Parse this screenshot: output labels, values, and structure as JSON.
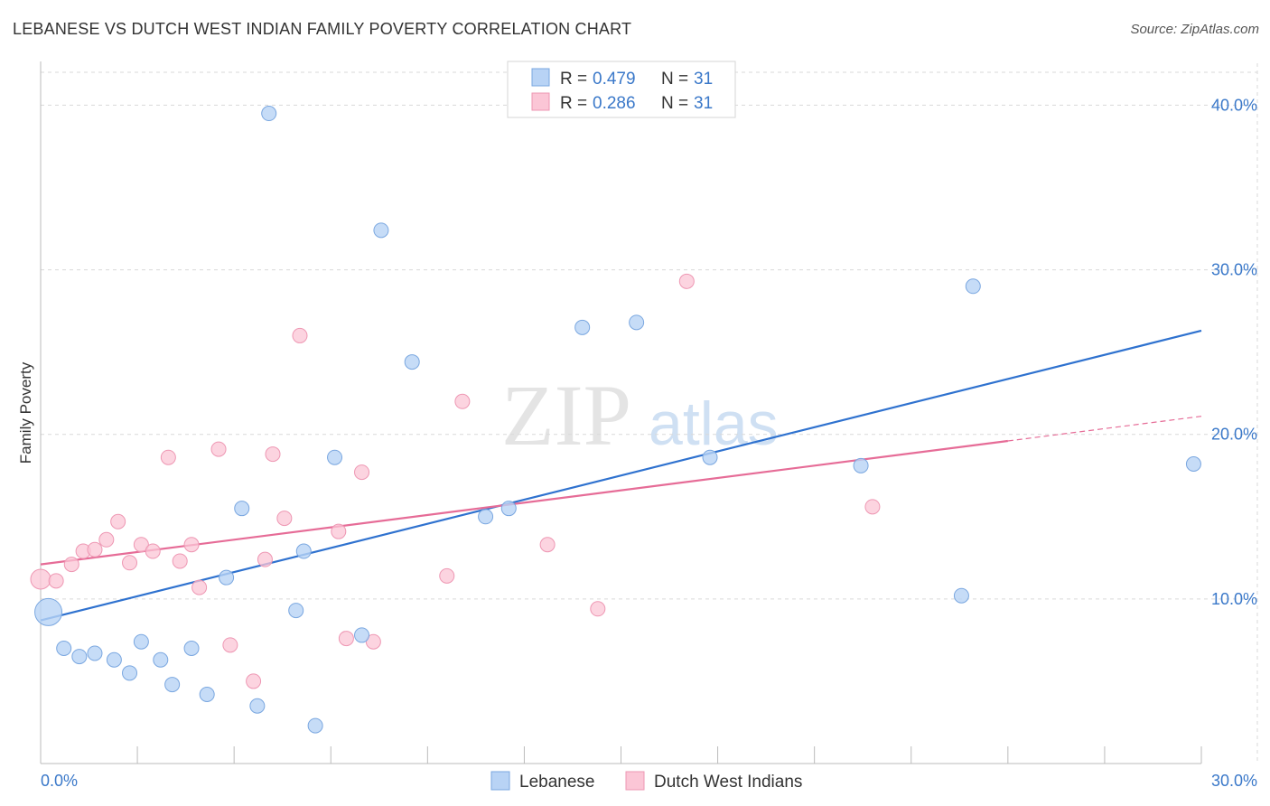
{
  "title": "LEBANESE VS DUTCH WEST INDIAN FAMILY POVERTY CORRELATION CHART",
  "source": "Source: ZipAtlas.com",
  "watermark": {
    "zip": "ZIP",
    "atlas": "atlas"
  },
  "colors": {
    "lebanese_fill": "#b8d3f5",
    "lebanese_stroke": "#7aa7e0",
    "lebanese_line": "#2f72cf",
    "dutch_fill": "#fbc6d6",
    "dutch_stroke": "#ee97b3",
    "dutch_line": "#e66c97",
    "grid": "#d9d9d9",
    "tick_text": "#3a78c9"
  },
  "legend": {
    "rows": [
      {
        "r_label": "R =",
        "r_value": "0.479",
        "n_label": "N =",
        "n_value": "31"
      },
      {
        "r_label": "R =",
        "r_value": "0.286",
        "n_label": "N =",
        "n_value": "31"
      }
    ]
  },
  "chart_data": {
    "type": "scatter",
    "title": "LEBANESE VS DUTCH WEST INDIAN FAMILY POVERTY CORRELATION CHART",
    "xlabel": "",
    "ylabel": "Family Poverty",
    "xlim": [
      0,
      30
    ],
    "ylim": [
      0,
      42
    ],
    "x_tick_labels": [
      {
        "value": 0,
        "label": "0.0%"
      },
      {
        "value": 30,
        "label": "30.0%"
      }
    ],
    "y_ticks": [
      {
        "value": 10,
        "label": "10.0%"
      },
      {
        "value": 20,
        "label": "20.0%"
      },
      {
        "value": 30,
        "label": "30.0%"
      },
      {
        "value": 40,
        "label": "40.0%"
      }
    ],
    "series": [
      {
        "name": "Lebanese",
        "r": 0.479,
        "n": 31,
        "trend": {
          "x": [
            0,
            30
          ],
          "y": [
            8.7,
            26.3
          ]
        },
        "points": [
          {
            "x": 0.2,
            "y": 9.2,
            "big": true
          },
          {
            "x": 0.6,
            "y": 7.0
          },
          {
            "x": 1.0,
            "y": 6.5
          },
          {
            "x": 1.4,
            "y": 6.7
          },
          {
            "x": 1.9,
            "y": 6.3
          },
          {
            "x": 2.3,
            "y": 5.5
          },
          {
            "x": 2.6,
            "y": 7.4
          },
          {
            "x": 3.1,
            "y": 6.3
          },
          {
            "x": 3.4,
            "y": 4.8
          },
          {
            "x": 3.9,
            "y": 7.0
          },
          {
            "x": 4.3,
            "y": 4.2
          },
          {
            "x": 4.8,
            "y": 11.3
          },
          {
            "x": 5.2,
            "y": 15.5
          },
          {
            "x": 5.6,
            "y": 3.5
          },
          {
            "x": 5.9,
            "y": 39.5
          },
          {
            "x": 6.6,
            "y": 9.3
          },
          {
            "x": 6.8,
            "y": 12.9
          },
          {
            "x": 7.1,
            "y": 2.3
          },
          {
            "x": 7.6,
            "y": 18.6
          },
          {
            "x": 8.3,
            "y": 7.8
          },
          {
            "x": 8.8,
            "y": 32.4
          },
          {
            "x": 9.6,
            "y": 24.4
          },
          {
            "x": 11.5,
            "y": 15.0
          },
          {
            "x": 12.1,
            "y": 15.5
          },
          {
            "x": 14.0,
            "y": 26.5
          },
          {
            "x": 15.4,
            "y": 26.8
          },
          {
            "x": 17.3,
            "y": 18.6
          },
          {
            "x": 21.2,
            "y": 18.1
          },
          {
            "x": 23.8,
            "y": 10.2
          },
          {
            "x": 24.1,
            "y": 29.0
          },
          {
            "x": 29.8,
            "y": 18.2
          }
        ]
      },
      {
        "name": "Dutch West Indians",
        "r": 0.286,
        "n": 31,
        "trend": {
          "x": [
            0,
            25
          ],
          "y": [
            12.1,
            19.6
          ]
        },
        "trend_dashed": {
          "x": [
            25,
            30
          ],
          "y": [
            19.6,
            21.1
          ]
        },
        "points": [
          {
            "x": 0.0,
            "y": 11.2,
            "big": true
          },
          {
            "x": 0.4,
            "y": 11.1
          },
          {
            "x": 0.8,
            "y": 12.1
          },
          {
            "x": 1.1,
            "y": 12.9
          },
          {
            "x": 1.4,
            "y": 13.0
          },
          {
            "x": 1.7,
            "y": 13.6
          },
          {
            "x": 2.0,
            "y": 14.7
          },
          {
            "x": 2.3,
            "y": 12.2
          },
          {
            "x": 2.6,
            "y": 13.3
          },
          {
            "x": 2.9,
            "y": 12.9
          },
          {
            "x": 3.3,
            "y": 18.6
          },
          {
            "x": 3.6,
            "y": 12.3
          },
          {
            "x": 3.9,
            "y": 13.3
          },
          {
            "x": 4.1,
            "y": 10.7
          },
          {
            "x": 4.6,
            "y": 19.1
          },
          {
            "x": 4.9,
            "y": 7.2
          },
          {
            "x": 5.5,
            "y": 5.0
          },
          {
            "x": 5.8,
            "y": 12.4
          },
          {
            "x": 6.0,
            "y": 18.8
          },
          {
            "x": 6.3,
            "y": 14.9
          },
          {
            "x": 6.7,
            "y": 26.0
          },
          {
            "x": 7.7,
            "y": 14.1
          },
          {
            "x": 7.9,
            "y": 7.6
          },
          {
            "x": 8.3,
            "y": 17.7
          },
          {
            "x": 8.6,
            "y": 7.4
          },
          {
            "x": 10.5,
            "y": 11.4
          },
          {
            "x": 10.9,
            "y": 22.0
          },
          {
            "x": 13.1,
            "y": 13.3
          },
          {
            "x": 14.4,
            "y": 9.4
          },
          {
            "x": 16.7,
            "y": 29.3
          },
          {
            "x": 21.5,
            "y": 15.6
          }
        ]
      }
    ]
  },
  "bottom_legend": {
    "items": [
      "Lebanese",
      "Dutch West Indians"
    ]
  }
}
